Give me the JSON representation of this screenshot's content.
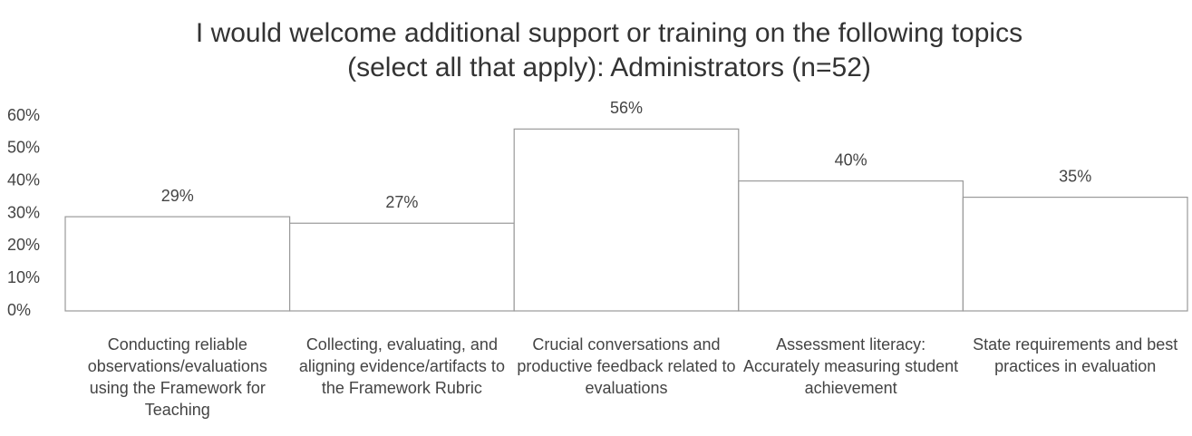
{
  "chart_data": {
    "type": "bar",
    "title": "I would welcome additional support or training on the following topics",
    "subtitle": "(select all that apply): Administrators (n=52)",
    "categories": [
      "Conducting reliable observations/evaluations using the Framework for Teaching",
      "Collecting, evaluating, and aligning evidence/artifacts to the Framework Rubric",
      "Crucial conversations and productive feedback related to evaluations",
      "Assessment literacy: Accurately measuring student achievement",
      "State requirements and best practices in evaluation"
    ],
    "values": [
      29,
      27,
      56,
      40,
      35
    ],
    "value_labels": [
      "29%",
      "27%",
      "56%",
      "40%",
      "35%"
    ],
    "color": "#ffffff",
    "ylim": [
      0,
      60
    ],
    "yticks": [
      {
        "value": 0,
        "label": "0%"
      },
      {
        "value": 10,
        "label": "10%"
      },
      {
        "value": 20,
        "label": "20%"
      },
      {
        "value": 30,
        "label": "30%"
      },
      {
        "value": 40,
        "label": "40%"
      },
      {
        "value": 50,
        "label": "50%"
      },
      {
        "value": 60,
        "label": "60%"
      }
    ],
    "grid": false
  }
}
